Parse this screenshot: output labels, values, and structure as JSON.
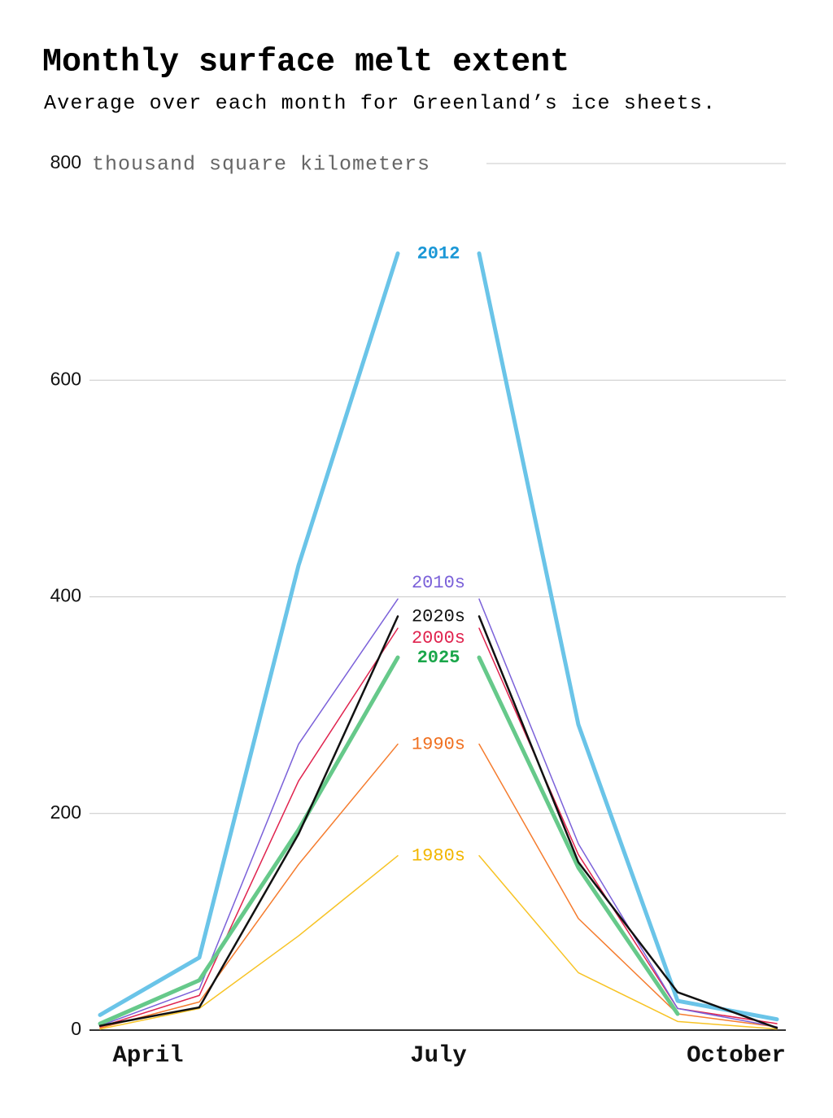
{
  "chart_data": {
    "type": "line",
    "title": "Monthly surface melt extent",
    "subtitle": "Average over each month for Greenland’s ice sheets.",
    "y_label": "thousand square kilometers",
    "categories": [
      "April",
      null,
      null,
      "July",
      null,
      null,
      "October"
    ],
    "ylim": [
      0,
      800
    ],
    "yticks": [
      0,
      200,
      400,
      600,
      800
    ],
    "grid": true,
    "series": [
      {
        "name": "2012",
        "color": "#6ac4e8",
        "label_color": "#1a97d6",
        "line_width": 5,
        "values": [
          14,
          67,
          429,
          717,
          282,
          27,
          10
        ]
      },
      {
        "name": "1980s",
        "color": "#f7c325",
        "label_color": "#f2b600",
        "line_width": 1.5,
        "values": [
          1,
          20,
          87,
          161,
          53,
          8,
          1
        ]
      },
      {
        "name": "1990s",
        "color": "#f57c2e",
        "label_color": "#f07020",
        "line_width": 1.5,
        "values": [
          2,
          26,
          153,
          264,
          103,
          15,
          3
        ]
      },
      {
        "name": "2000s",
        "color": "#e0234e",
        "label_color": "#e0234e",
        "line_width": 1.5,
        "values": [
          3,
          32,
          230,
          371,
          162,
          20,
          6
        ]
      },
      {
        "name": "2010s",
        "color": "#7b61d9",
        "label_color": "#7b61d9",
        "line_width": 1.5,
        "values": [
          4,
          38,
          264,
          398,
          172,
          20,
          3
        ]
      },
      {
        "name": "2025",
        "color": "#66c98a",
        "label_color": "#1aa64a",
        "line_width": 5,
        "values": [
          6,
          46,
          185,
          344,
          150,
          15,
          null
        ]
      },
      {
        "name": "2020s",
        "color": "#111111",
        "label_color": "#111111",
        "line_width": 2.5,
        "values": [
          4,
          21,
          181,
          382,
          155,
          35,
          2
        ]
      }
    ]
  }
}
